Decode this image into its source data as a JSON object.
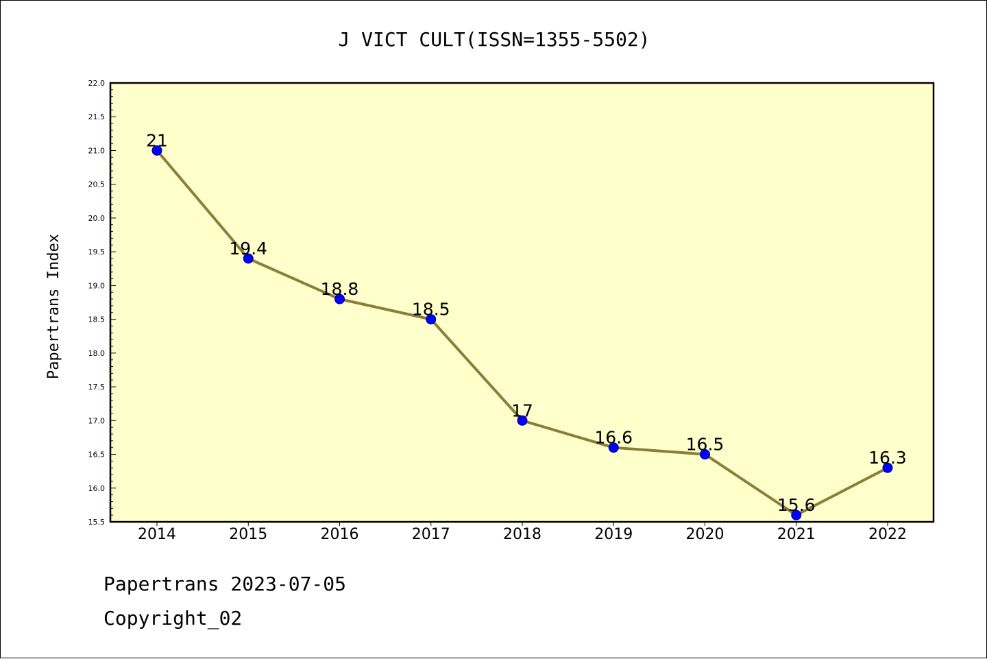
{
  "chart_data": {
    "type": "line",
    "title": "J VICT CULT(ISSN=1355-5502)",
    "xlabel": "",
    "ylabel": "Papertrans Index",
    "x": [
      "2014",
      "2015",
      "2016",
      "2017",
      "2018",
      "2019",
      "2020",
      "2021",
      "2022"
    ],
    "series": [
      {
        "values": [
          21,
          19.4,
          18.8,
          18.5,
          17,
          16.6,
          16.5,
          15.6,
          16.3
        ],
        "labels": [
          "21",
          "19.4",
          "18.8",
          "18.5",
          "17",
          "16.6",
          "16.5",
          "15.6",
          "16.3"
        ]
      }
    ],
    "ylim": [
      15.5,
      22.0
    ],
    "yticks": [
      "15.5",
      "16.0",
      "16.5",
      "17.0",
      "17.5",
      "18.0",
      "18.5",
      "19.0",
      "19.5",
      "20.0",
      "20.5",
      "21.0",
      "21.5",
      "22.0"
    ],
    "grid": false,
    "colors": {
      "plot_bg": "#ffffcc",
      "line": "#8b7d3a",
      "marker": "#0000ff"
    }
  },
  "footer": {
    "line1": "Papertrans 2023-07-05",
    "line2": "Copyright_02"
  }
}
